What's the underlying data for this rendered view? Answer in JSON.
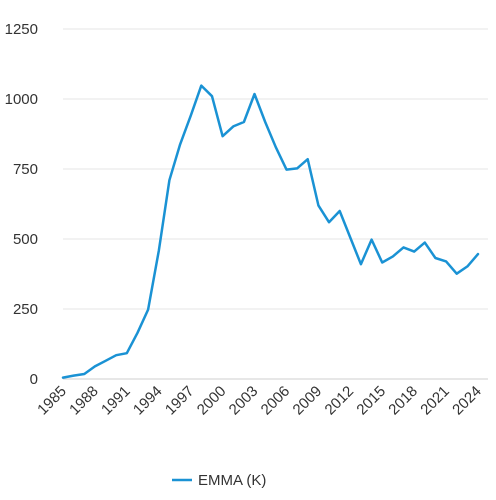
{
  "chart_data": {
    "type": "line",
    "x": [
      1985,
      1986,
      1987,
      1988,
      1989,
      1990,
      1991,
      1992,
      1993,
      1994,
      1995,
      1996,
      1997,
      1998,
      1999,
      2000,
      2001,
      2002,
      2003,
      2004,
      2005,
      2006,
      2007,
      2008,
      2009,
      2010,
      2011,
      2012,
      2013,
      2014,
      2015,
      2016,
      2017,
      2018,
      2019,
      2020,
      2021,
      2022,
      2023,
      2024
    ],
    "series": [
      {
        "name": "EMMA (K)",
        "color": "#1a92d4",
        "values": [
          5,
          12,
          18,
          45,
          65,
          85,
          92,
          165,
          248,
          458,
          710,
          838,
          940,
          1048,
          1010,
          867,
          902,
          918,
          1018,
          918,
          828,
          748,
          752,
          785,
          620,
          560,
          600,
          505,
          410,
          498,
          416,
          438,
          470,
          455,
          487,
          432,
          420,
          376,
          402,
          446
        ]
      }
    ],
    "xticks": [
      "1985",
      "1988",
      "1991",
      "1994",
      "1997",
      "2000",
      "2003",
      "2006",
      "2009",
      "2012",
      "2015",
      "2018",
      "2021",
      "2024"
    ],
    "yticks": [
      "0",
      "250",
      "500",
      "750",
      "1000",
      "1250"
    ],
    "ylim": [
      0,
      1250
    ],
    "xlim": [
      1985,
      2024
    ],
    "grid": "horizontal",
    "legend": "bottom-center"
  }
}
